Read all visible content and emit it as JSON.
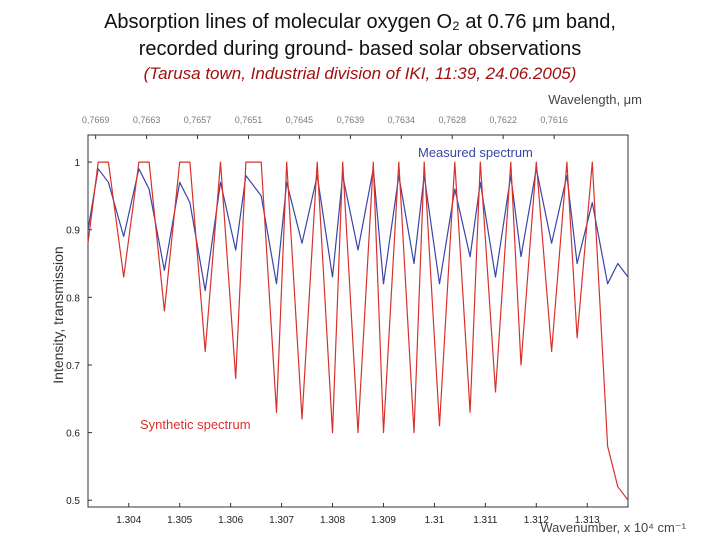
{
  "header": {
    "title_line1": "Absorption lines of molecular oxygen O₂ at 0.76 μm band,",
    "title_line2": "recorded during ground- based solar observations",
    "subtitle": "(Tarusa town, Industrial division of IKI, 11:39, 24.06.2005)"
  },
  "colors": {
    "measured": "#3a45a8",
    "synthetic": "#d8312c",
    "axis": "#333333",
    "top_tick_text": "#7a7a7a"
  },
  "chart_data": {
    "type": "line",
    "xlabel": "Wavenumber, x 10⁴ cm⁻¹",
    "ylabel": "Intensity, transmission",
    "top_axis_label": "Wavelength, μm",
    "xlim": [
      1.3032,
      1.3138
    ],
    "ylim": [
      0.49,
      1.04
    ],
    "x_ticks": [
      "1.304",
      "1.305",
      "1.306",
      "1.307",
      "1.308",
      "1.309",
      "1.31",
      "1.311",
      "1.312",
      "1.313"
    ],
    "y_ticks": [
      "0.5",
      "0.6",
      "0.7",
      "0.8",
      "0.9",
      "1"
    ],
    "top_ticks": [
      "0,7669",
      "0,7663",
      "0,7657",
      "0,7651",
      "0,7645",
      "0,7639",
      "0,7634",
      "0,7628",
      "0,7622",
      "0,7616"
    ],
    "annotations": [
      "Measured spectrum",
      "Synthetic spectrum"
    ],
    "series": [
      {
        "name": "Measured spectrum",
        "x": [
          1.3032,
          1.3034,
          1.3036,
          1.3039,
          1.3042,
          1.3044,
          1.3047,
          1.305,
          1.3052,
          1.3055,
          1.3058,
          1.3061,
          1.3063,
          1.3066,
          1.3069,
          1.3071,
          1.3074,
          1.3077,
          1.308,
          1.3082,
          1.3085,
          1.3088,
          1.309,
          1.3093,
          1.3096,
          1.3098,
          1.3101,
          1.3104,
          1.3107,
          1.3109,
          1.3112,
          1.3115,
          1.3117,
          1.312,
          1.3123,
          1.3126,
          1.3128,
          1.3131,
          1.3134,
          1.3136,
          1.3138
        ],
        "values": [
          0.9,
          0.99,
          0.97,
          0.89,
          0.99,
          0.96,
          0.84,
          0.97,
          0.94,
          0.81,
          0.97,
          0.87,
          0.98,
          0.95,
          0.82,
          0.97,
          0.88,
          0.98,
          0.83,
          0.98,
          0.87,
          0.99,
          0.82,
          0.98,
          0.85,
          0.98,
          0.82,
          0.96,
          0.86,
          0.97,
          0.83,
          0.98,
          0.86,
          0.99,
          0.88,
          0.98,
          0.85,
          0.94,
          0.82,
          0.85,
          0.83
        ]
      },
      {
        "name": "Synthetic spectrum",
        "x": [
          1.3032,
          1.3034,
          1.3036,
          1.3039,
          1.3042,
          1.3044,
          1.3047,
          1.305,
          1.3052,
          1.3055,
          1.3058,
          1.3061,
          1.3063,
          1.3066,
          1.3069,
          1.3071,
          1.3074,
          1.3077,
          1.308,
          1.3082,
          1.3085,
          1.3088,
          1.309,
          1.3093,
          1.3096,
          1.3098,
          1.3101,
          1.3104,
          1.3107,
          1.3109,
          1.3112,
          1.3115,
          1.3117,
          1.312,
          1.3123,
          1.3126,
          1.3128,
          1.3131,
          1.3134,
          1.3136,
          1.3138
        ],
        "values": [
          0.88,
          1.0,
          1.0,
          0.83,
          1.0,
          1.0,
          0.78,
          1.0,
          1.0,
          0.72,
          1.0,
          0.68,
          1.0,
          1.0,
          0.63,
          1.0,
          0.62,
          1.0,
          0.6,
          1.0,
          0.6,
          1.0,
          0.6,
          1.0,
          0.6,
          1.0,
          0.61,
          1.0,
          0.63,
          1.0,
          0.66,
          1.0,
          0.7,
          1.0,
          0.72,
          1.0,
          0.74,
          1.0,
          0.58,
          0.52,
          0.5
        ]
      }
    ]
  }
}
